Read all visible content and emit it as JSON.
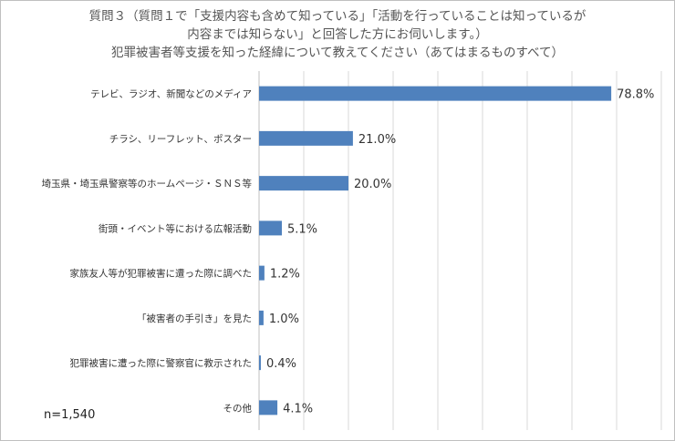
{
  "title_lines": [
    "質問３（質問１で「支援内容も含めて知っている」「活動を行っていることは知っているが",
    "内容までは知らない」と回答した方にお伺いします。）",
    "犯罪被害者等支援を知った経緯について教えてください（あてはまるものすべて）"
  ],
  "note": "n=1,540",
  "chart_data": {
    "type": "bar",
    "orientation": "horizontal",
    "categories": [
      "テレビ、ラジオ、新聞などのメディア",
      "チラシ、リーフレット、ポスター",
      "埼玉県・埼玉県警察等のホームページ・ＳＮＳ等",
      "街頭・イベント等における広報活動",
      "家族友人等が犯罪被害に遭った際に調べた",
      "「被害者の手引き」を見た",
      "犯罪被害に遭った際に警察官に教示された",
      "その他"
    ],
    "values": [
      78.8,
      21.0,
      20.0,
      5.1,
      1.2,
      1.0,
      0.4,
      4.1
    ],
    "value_labels": [
      "78.8%",
      "21.0%",
      "20.0%",
      "5.1%",
      "1.2%",
      "1.0%",
      "0.4%",
      "4.1%"
    ],
    "xlim": [
      0,
      100
    ],
    "grid": true,
    "bar_color": "#4f81bd",
    "grid_color": "#d9d9d9"
  }
}
